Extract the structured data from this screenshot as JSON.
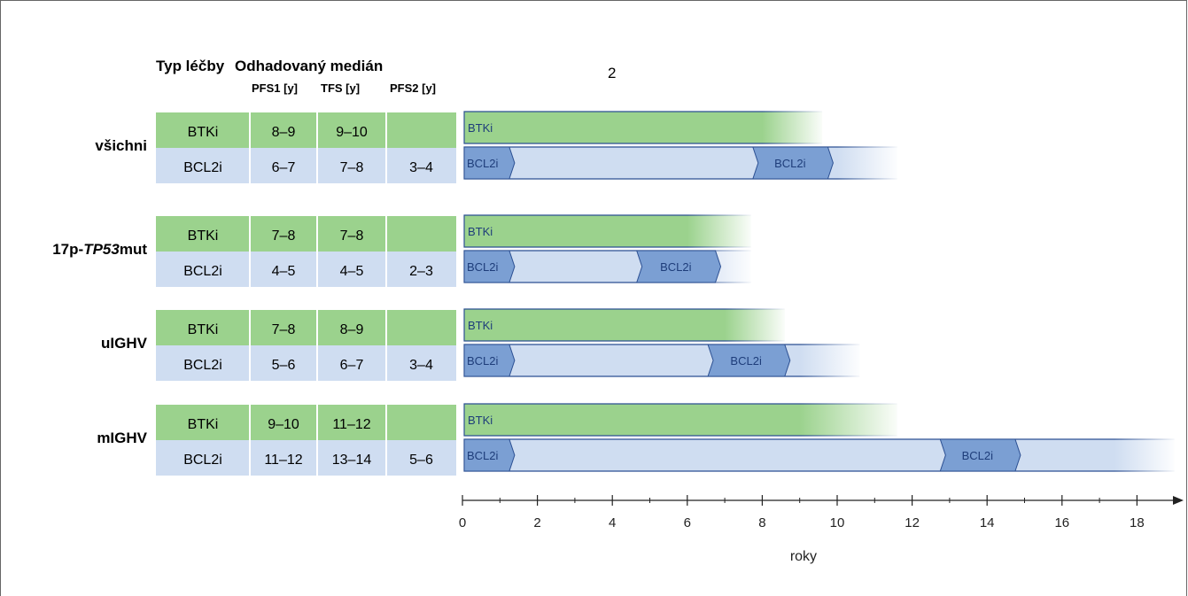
{
  "headers": {
    "therapy_type": "Typ léčby",
    "estimated_median": "Odhadovaný medián",
    "pfs1": "PFS1 [y]",
    "tfs": "TFS [y]",
    "pfs2": "PFS2 [y]",
    "stray_number": "2"
  },
  "colors": {
    "btki_fill": "#9bd28d",
    "bcl2i_fill": "#cfddf1",
    "bcl2i_chevron": "#7b9fd3",
    "bar_outline": "#2b4f92",
    "table_btki": "#9bd28d",
    "table_bcl2i": "#cfddf1"
  },
  "groups": [
    {
      "name_prefix": "všichni",
      "name_italic": "",
      "name_suffix": "",
      "btki": {
        "label": "BTKi",
        "pfs1": "8–9",
        "tfs": "9–10",
        "pfs2": ""
      },
      "bcl2i": {
        "label": "BCL2i",
        "pfs1": "6–7",
        "tfs": "7–8",
        "pfs2": "3–4"
      }
    },
    {
      "name_prefix": "17p-",
      "name_italic": "TP53",
      "name_suffix": "mut",
      "btki": {
        "label": "BTKi",
        "pfs1": "7–8",
        "tfs": "7–8",
        "pfs2": ""
      },
      "bcl2i": {
        "label": "BCL2i",
        "pfs1": "4–5",
        "tfs": "4–5",
        "pfs2": "2–3"
      }
    },
    {
      "name_prefix": "uIGHV",
      "name_italic": "",
      "name_suffix": "",
      "btki": {
        "label": "BTKi",
        "pfs1": "7–8",
        "tfs": "8–9",
        "pfs2": ""
      },
      "bcl2i": {
        "label": "BCL2i",
        "pfs1": "5–6",
        "tfs": "6–7",
        "pfs2": "3–4"
      }
    },
    {
      "name_prefix": "mIGHV",
      "name_italic": "",
      "name_suffix": "",
      "btki": {
        "label": "BTKi",
        "pfs1": "9–10",
        "tfs": "11–12",
        "pfs2": ""
      },
      "bcl2i": {
        "label": "BCL2i",
        "pfs1": "11–12",
        "tfs": "13–14",
        "pfs2": "5–6"
      }
    }
  ],
  "chart_data": {
    "type": "bar",
    "orientation": "horizontal",
    "xlabel": "roky",
    "xlim": [
      0,
      19
    ],
    "xticks": [
      0,
      2,
      4,
      6,
      8,
      10,
      12,
      14,
      16,
      18
    ],
    "bars": [
      {
        "group": "všichni",
        "label": "BTKi",
        "solid_end": 8,
        "end": 9.6,
        "segments": [
          {
            "label": "BTKi",
            "start": 0
          }
        ]
      },
      {
        "group": "všichni",
        "label": "BCL2i",
        "end": 11.6,
        "segments": [
          {
            "label": "BCL2i",
            "start": 0,
            "end": 1.25
          },
          {
            "label": "BCL2i",
            "start": 7.75,
            "end": 9.75
          }
        ]
      },
      {
        "group": "17p-TP53mut",
        "label": "BTKi",
        "solid_end": 6,
        "end": 7.7,
        "segments": [
          {
            "label": "BTKi",
            "start": 0
          }
        ]
      },
      {
        "group": "17p-TP53mut",
        "label": "BCL2i",
        "end": 7.7,
        "segments": [
          {
            "label": "BCL2i",
            "start": 0,
            "end": 1.25
          },
          {
            "label": "BCL2i",
            "start": 4.65,
            "end": 6.75
          }
        ]
      },
      {
        "group": "uIGHV",
        "label": "BTKi",
        "solid_end": 7,
        "end": 8.6,
        "segments": [
          {
            "label": "BTKi",
            "start": 0
          }
        ]
      },
      {
        "group": "uIGHV",
        "label": "BCL2i",
        "end": 10.6,
        "segments": [
          {
            "label": "BCL2i",
            "start": 0,
            "end": 1.25
          },
          {
            "label": "BCL2i",
            "start": 6.55,
            "end": 8.6
          }
        ]
      },
      {
        "group": "mIGHV",
        "label": "BTKi",
        "solid_end": 9,
        "end": 11.6,
        "segments": [
          {
            "label": "BTKi",
            "start": 0
          }
        ]
      },
      {
        "group": "mIGHV",
        "label": "BCL2i",
        "end": 19.0,
        "segments": [
          {
            "label": "BCL2i",
            "start": 0,
            "end": 1.25
          },
          {
            "label": "BCL2i",
            "start": 12.75,
            "end": 14.75
          }
        ]
      }
    ]
  }
}
